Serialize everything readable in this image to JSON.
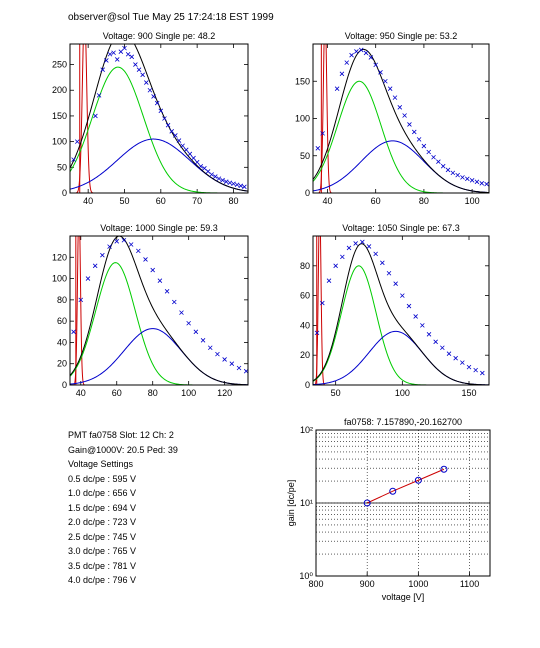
{
  "header": {
    "title": "observer@sol  Tue May 25 17:24:18 EST 1999"
  },
  "info": {
    "pmt_line": "PMT fa0758 Slot: 12 Ch: 2",
    "gain_line": "Gain@1000V: 20.5 Ped: 39",
    "settings_title": "Voltage Settings",
    "settings": [
      "0.5 dc/pe : 595 V",
      "1.0 dc/pe : 656 V",
      "1.5 dc/pe : 694 V",
      "2.0 dc/pe : 723 V",
      "2.5 dc/pe : 745 V",
      "3.0 dc/pe : 765 V",
      "3.5 dc/pe : 781 V",
      "4.0 dc/pe : 796 V"
    ]
  },
  "colors": {
    "data": "#0000cc",
    "total": "#000000",
    "single_pe": "#00cc00",
    "double_pe": "#0000cc",
    "pedestal": "#cc0000",
    "gain_line": "#cc0000"
  },
  "chart_data": [
    {
      "type": "line",
      "title": "Voltage: 900 Single pe: 48.2",
      "xlim": [
        35,
        84
      ],
      "ylim": [
        0,
        290
      ],
      "xticks": [
        40,
        50,
        60,
        70,
        80
      ],
      "yticks": [
        0,
        50,
        100,
        150,
        200,
        250
      ],
      "single_pe": {
        "mean": 48.2,
        "amp": 245,
        "sigma": 7
      },
      "double_pe": {
        "mean": 58,
        "amp": 105,
        "sigma": 10
      },
      "pedestal": {
        "center": 39,
        "height": 290,
        "sigma": 0.6
      },
      "data_points": [
        [
          36,
          65
        ],
        [
          37,
          100
        ],
        [
          42,
          150
        ],
        [
          43,
          190
        ],
        [
          44,
          240
        ],
        [
          45,
          258
        ],
        [
          46,
          270
        ],
        [
          47,
          273
        ],
        [
          48,
          260
        ],
        [
          49,
          275
        ],
        [
          50,
          282
        ],
        [
          51,
          270
        ],
        [
          52,
          265
        ],
        [
          53,
          250
        ],
        [
          54,
          240
        ],
        [
          55,
          230
        ],
        [
          56,
          215
        ],
        [
          57,
          200
        ],
        [
          58,
          188
        ],
        [
          59,
          175
        ],
        [
          60,
          160
        ],
        [
          61,
          145
        ],
        [
          62,
          132
        ],
        [
          63,
          120
        ],
        [
          64,
          112
        ],
        [
          65,
          102
        ],
        [
          66,
          92
        ],
        [
          67,
          84
        ],
        [
          68,
          76
        ],
        [
          69,
          68
        ],
        [
          70,
          60
        ],
        [
          71,
          52
        ],
        [
          72,
          48
        ],
        [
          73,
          42
        ],
        [
          74,
          36
        ],
        [
          75,
          32
        ],
        [
          76,
          28
        ],
        [
          77,
          25
        ],
        [
          78,
          22
        ],
        [
          79,
          20
        ],
        [
          80,
          18
        ],
        [
          81,
          16
        ],
        [
          82,
          14
        ],
        [
          83,
          12
        ]
      ]
    },
    {
      "type": "line",
      "title": "Voltage: 950 Single pe: 53.2",
      "xlim": [
        34,
        107
      ],
      "ylim": [
        0,
        200
      ],
      "xticks": [
        40,
        60,
        80,
        100
      ],
      "yticks": [
        0,
        50,
        100,
        150
      ],
      "single_pe": {
        "mean": 53.2,
        "amp": 150,
        "sigma": 9
      },
      "double_pe": {
        "mean": 67,
        "amp": 70,
        "sigma": 13
      },
      "pedestal": {
        "center": 39,
        "height": 200,
        "sigma": 0.7
      },
      "data_points": [
        [
          36,
          60
        ],
        [
          38,
          80
        ],
        [
          44,
          140
        ],
        [
          46,
          160
        ],
        [
          48,
          175
        ],
        [
          50,
          185
        ],
        [
          52,
          190
        ],
        [
          54,
          192
        ],
        [
          56,
          188
        ],
        [
          58,
          182
        ],
        [
          60,
          172
        ],
        [
          62,
          162
        ],
        [
          64,
          150
        ],
        [
          66,
          140
        ],
        [
          68,
          128
        ],
        [
          70,
          115
        ],
        [
          72,
          104
        ],
        [
          74,
          92
        ],
        [
          76,
          82
        ],
        [
          78,
          72
        ],
        [
          80,
          63
        ],
        [
          82,
          55
        ],
        [
          84,
          48
        ],
        [
          86,
          42
        ],
        [
          88,
          36
        ],
        [
          90,
          31
        ],
        [
          92,
          27
        ],
        [
          94,
          24
        ],
        [
          96,
          21
        ],
        [
          98,
          19
        ],
        [
          100,
          17
        ],
        [
          102,
          15
        ],
        [
          104,
          13
        ],
        [
          106,
          12
        ]
      ]
    },
    {
      "type": "line",
      "title": "Voltage: 1000 Single pe: 59.3",
      "xlim": [
        34,
        133
      ],
      "ylim": [
        0,
        140
      ],
      "xticks": [
        40,
        60,
        80,
        100,
        120
      ],
      "yticks": [
        0,
        20,
        40,
        60,
        80,
        100,
        120
      ],
      "single_pe": {
        "mean": 59.3,
        "amp": 115,
        "sigma": 11
      },
      "double_pe": {
        "mean": 80,
        "amp": 53,
        "sigma": 16
      },
      "pedestal": {
        "center": 39,
        "height": 140,
        "sigma": 0.8
      },
      "data_points": [
        [
          36,
          50
        ],
        [
          40,
          80
        ],
        [
          44,
          100
        ],
        [
          48,
          112
        ],
        [
          52,
          122
        ],
        [
          56,
          130
        ],
        [
          60,
          135
        ],
        [
          64,
          136
        ],
        [
          68,
          132
        ],
        [
          72,
          126
        ],
        [
          76,
          118
        ],
        [
          80,
          108
        ],
        [
          84,
          98
        ],
        [
          88,
          88
        ],
        [
          92,
          78
        ],
        [
          96,
          68
        ],
        [
          100,
          58
        ],
        [
          104,
          50
        ],
        [
          108,
          42
        ],
        [
          112,
          35
        ],
        [
          116,
          29
        ],
        [
          120,
          24
        ],
        [
          124,
          20
        ],
        [
          128,
          16
        ],
        [
          132,
          13
        ]
      ]
    },
    {
      "type": "line",
      "title": "Voltage: 1050 Single pe: 67.3",
      "xlim": [
        33,
        165
      ],
      "ylim": [
        0,
        100
      ],
      "xticks": [
        50,
        100,
        150
      ],
      "yticks": [
        0,
        20,
        40,
        60,
        80
      ],
      "single_pe": {
        "mean": 67.3,
        "amp": 80,
        "sigma": 13
      },
      "double_pe": {
        "mean": 95,
        "amp": 36,
        "sigma": 20
      },
      "pedestal": {
        "center": 38,
        "height": 100,
        "sigma": 1.0
      },
      "data_points": [
        [
          36,
          35
        ],
        [
          40,
          55
        ],
        [
          45,
          70
        ],
        [
          50,
          80
        ],
        [
          55,
          86
        ],
        [
          60,
          92
        ],
        [
          65,
          95
        ],
        [
          70,
          96
        ],
        [
          75,
          93
        ],
        [
          80,
          88
        ],
        [
          85,
          82
        ],
        [
          90,
          75
        ],
        [
          95,
          68
        ],
        [
          100,
          60
        ],
        [
          105,
          53
        ],
        [
          110,
          46
        ],
        [
          115,
          40
        ],
        [
          120,
          34
        ],
        [
          125,
          29
        ],
        [
          130,
          25
        ],
        [
          135,
          21
        ],
        [
          140,
          18
        ],
        [
          145,
          15
        ],
        [
          150,
          12
        ],
        [
          155,
          10
        ],
        [
          160,
          8
        ]
      ]
    },
    {
      "type": "scatter",
      "title": "fa0758: 7.157890,-20.162700",
      "xlabel": "voltage [V]",
      "ylabel": "gain [dc/pe]",
      "xlim": [
        800,
        1140
      ],
      "ylim": [
        1,
        100
      ],
      "yscale": "log",
      "xticks": [
        800,
        900,
        1000,
        1100
      ],
      "ytick_labels": [
        "10⁰",
        "10¹",
        "10²"
      ],
      "grid": true,
      "x": [
        900,
        950,
        1000,
        1050
      ],
      "y": [
        10,
        14.5,
        20.5,
        29
      ]
    }
  ]
}
